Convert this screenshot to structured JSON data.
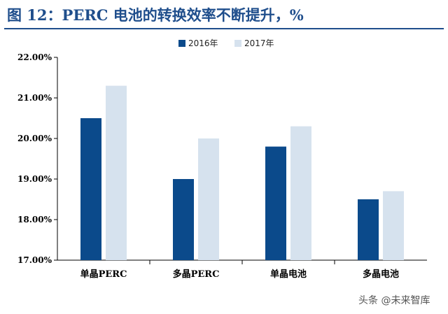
{
  "title": "图 12：PERC 电池的转换效率不断提升，%",
  "watermark": "头条 @未来智库",
  "colors": {
    "title": "#1f4e8c",
    "series_2016": "#0b4a8b",
    "series_2017": "#d6e2ee"
  },
  "chart_data": {
    "type": "bar",
    "categories": [
      "单晶PERC",
      "多晶PERC",
      "单晶电池",
      "多晶电池"
    ],
    "series": [
      {
        "name": "2016年",
        "values": [
          20.5,
          19.0,
          19.8,
          18.5
        ]
      },
      {
        "name": "2017年",
        "values": [
          21.3,
          20.0,
          20.3,
          18.7
        ]
      }
    ],
    "ylim": [
      17.0,
      22.0
    ],
    "yticks": [
      "17.00%",
      "18.00%",
      "19.00%",
      "20.00%",
      "21.00%",
      "22.00%"
    ],
    "legend": "top-center",
    "grid": false
  }
}
